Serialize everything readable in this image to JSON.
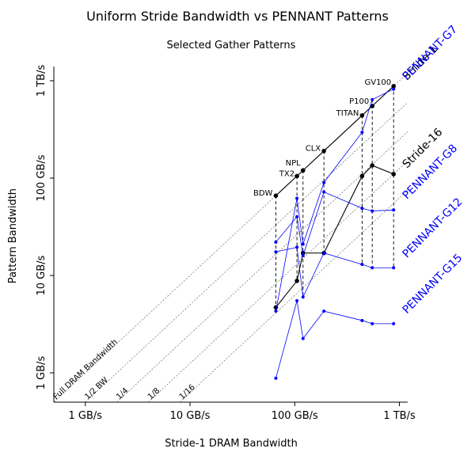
{
  "chart_data": {
    "type": "scatter",
    "title": "Uniform Stride Bandwidth vs PENNANT Patterns",
    "subtitle": "Selected Gather Patterns",
    "xlabel": "Stride-1 DRAM Bandwidth",
    "ylabel": "Pattern Bandwidth",
    "xscale": "log",
    "yscale": "log",
    "xlim": [
      0.5,
      1200
    ],
    "ylim": [
      0.5,
      1400
    ],
    "xticks": [
      {
        "value": 1,
        "label": "1 GB/s"
      },
      {
        "value": 10,
        "label": "10 GB/s"
      },
      {
        "value": 100,
        "label": "100 GB/s"
      },
      {
        "value": 1000,
        "label": "1 TB/s"
      }
    ],
    "yticks": [
      {
        "value": 1,
        "label": "1 GB/s"
      },
      {
        "value": 10,
        "label": "10 GB/s"
      },
      {
        "value": 100,
        "label": "100 GB/s"
      },
      {
        "value": 1000,
        "label": "1 TB/s"
      }
    ],
    "platforms": [
      {
        "name": "BDW",
        "x": 66
      },
      {
        "name": "TX2",
        "x": 105
      },
      {
        "name": "NPL",
        "x": 120
      },
      {
        "name": "CLX",
        "x": 190
      },
      {
        "name": "TITAN",
        "x": 440
      },
      {
        "name": "P100",
        "x": 550
      },
      {
        "name": "GV100",
        "x": 880
      }
    ],
    "reference_lines": [
      {
        "label": "Full DRAM Bandwidth",
        "factor": 1
      },
      {
        "label": "1/2 BW",
        "factor": 0.5
      },
      {
        "label": "1/4",
        "factor": 0.25
      },
      {
        "label": "1/8",
        "factor": 0.125
      },
      {
        "label": "1/16",
        "factor": 0.0625
      }
    ],
    "series": [
      {
        "name": "Stride-1",
        "color": "#000000",
        "values": [
          66,
          105,
          120,
          190,
          440,
          550,
          880
        ]
      },
      {
        "name": "Stride-16",
        "color": "#000000",
        "values": [
          4.7,
          8.8,
          17,
          17,
          105,
          135,
          110
        ]
      },
      {
        "name": "PENNANT-G7",
        "color": "#0000ff",
        "values": [
          4.3,
          62,
          21,
          90,
          295,
          640,
          820
        ]
      },
      {
        "name": "PENNANT-G8",
        "color": "#0000ff",
        "values": [
          22,
          40,
          16,
          72,
          49,
          46,
          47
        ]
      },
      {
        "name": "PENNANT-G12",
        "color": "#0000ff",
        "values": [
          17.5,
          19.5,
          6,
          17,
          13,
          12,
          12
        ]
      },
      {
        "name": "PENNANT-G15",
        "color": "#0000ff",
        "values": [
          0.88,
          5.5,
          2.25,
          4.3,
          3.45,
          3.2,
          3.2
        ]
      }
    ],
    "series_label_positions": {
      "Stride-1": 1000,
      "Stride-16": 125,
      "PENNANT-G7": 1000,
      "PENNANT-G8": 60,
      "PENNANT-G12": 15,
      "PENNANT-G15": 4
    },
    "grid": false,
    "legend": "inline-right"
  }
}
